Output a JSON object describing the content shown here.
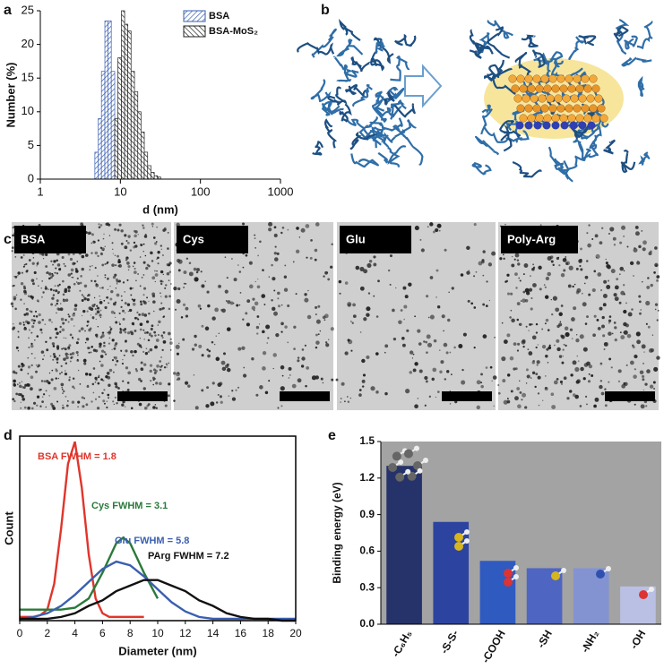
{
  "panel_labels": [
    "a",
    "b",
    "c",
    "d",
    "e"
  ],
  "tem_images": {
    "labels": [
      "BSA",
      "Cys",
      "Glu",
      "Poly-Arg"
    ]
  },
  "chart_data": [
    {
      "type": "histogram",
      "xlabel": "d (nm)",
      "ylabel": "Number (%)",
      "log_x": true,
      "xlim": [
        1,
        1000
      ],
      "xticks": [
        1,
        10,
        100,
        1000
      ],
      "ylim": [
        0,
        25
      ],
      "yticks": [
        0,
        5,
        10,
        15,
        20,
        25
      ],
      "legend": "upper right",
      "series": [
        {
          "name": "BSA",
          "color": "#3a5fb0",
          "bins": [
            4.8,
            5.3,
            5.8,
            6.4,
            7.0,
            7.7,
            8.5,
            9.3
          ],
          "values": [
            4,
            9,
            16,
            23.5,
            23.5,
            16,
            7
          ]
        },
        {
          "name": "BSA-MoS₂",
          "color": "#222222",
          "bins": [
            8.5,
            9.3,
            10.3,
            11.3,
            12.4,
            13.6,
            15,
            16.5,
            18.1,
            19.9,
            21.9,
            24.1,
            26.5,
            29.1,
            32
          ],
          "values": [
            9,
            18,
            25,
            23,
            22,
            16,
            13,
            10,
            7,
            4,
            2,
            1,
            0.5,
            0.3
          ]
        }
      ]
    },
    {
      "type": "line",
      "xlabel": "Diameter (nm)",
      "ylabel": "Count",
      "xlim": [
        0,
        20
      ],
      "xticks": [
        0,
        2,
        4,
        6,
        8,
        10,
        12,
        14,
        16,
        18,
        20
      ],
      "ylim": [
        0,
        1
      ],
      "series": [
        {
          "name": "BSA FWHM = 1.8",
          "color": "#e0352b",
          "x": [
            0,
            0.5,
            1,
            1.5,
            2,
            2.5,
            3,
            3.5,
            4,
            4.5,
            5,
            5.5,
            6,
            6.5,
            7,
            8,
            9
          ],
          "values": [
            0.02,
            0.02,
            0.02,
            0.03,
            0.06,
            0.2,
            0.5,
            0.85,
            0.97,
            0.72,
            0.36,
            0.12,
            0.04,
            0.02,
            0.02,
            0.02,
            0.02
          ]
        },
        {
          "name": "Cys FWHM = 3.1",
          "color": "#2a7a3a",
          "x": [
            0,
            1,
            2,
            3,
            4,
            5,
            6,
            7,
            7.5,
            8,
            9,
            10
          ],
          "values": [
            0.06,
            0.06,
            0.06,
            0.06,
            0.07,
            0.12,
            0.26,
            0.42,
            0.45,
            0.42,
            0.26,
            0.12
          ]
        },
        {
          "name": "Glu FWHM = 5.8",
          "color": "#3a5fb0",
          "x": [
            0,
            1,
            2,
            3,
            4,
            5,
            6,
            7,
            8,
            9,
            10,
            11,
            12,
            13,
            14,
            16,
            18,
            20
          ],
          "values": [
            0.01,
            0.02,
            0.04,
            0.08,
            0.14,
            0.21,
            0.28,
            0.32,
            0.3,
            0.24,
            0.17,
            0.1,
            0.05,
            0.02,
            0.01,
            0.01,
            0.01,
            0.01
          ]
        },
        {
          "name": "PArg FWHM = 7.2",
          "color": "#111111",
          "x": [
            0,
            1,
            2,
            3,
            4,
            5,
            6,
            7,
            8,
            9,
            10,
            11,
            12,
            13,
            14,
            15,
            16,
            17,
            18,
            19,
            20
          ],
          "values": [
            0.01,
            0.01,
            0.01,
            0.02,
            0.04,
            0.08,
            0.11,
            0.16,
            0.19,
            0.22,
            0.22,
            0.19,
            0.16,
            0.11,
            0.08,
            0.04,
            0.02,
            0.01,
            0.01,
            0,
            0
          ]
        }
      ]
    },
    {
      "type": "bar",
      "ylabel": "Binding energy (eV)",
      "background": "#a3a3a3",
      "categories": [
        "-C₆H₅",
        "-S-S-",
        "-COOH",
        "-SH",
        "-NH₂",
        "-OH"
      ],
      "values": [
        1.3,
        0.84,
        0.52,
        0.46,
        0.46,
        0.31
      ],
      "colors": [
        "#26336a",
        "#2c44a0",
        "#2f5ac0",
        "#4e65c2",
        "#8393d2",
        "#bac0e4"
      ],
      "ylim": [
        0,
        1.5
      ],
      "yticks": [
        {
          "value": 0,
          "label": "0.0"
        },
        0.3,
        0.6,
        0.9,
        1.2,
        1.5
      ]
    }
  ]
}
